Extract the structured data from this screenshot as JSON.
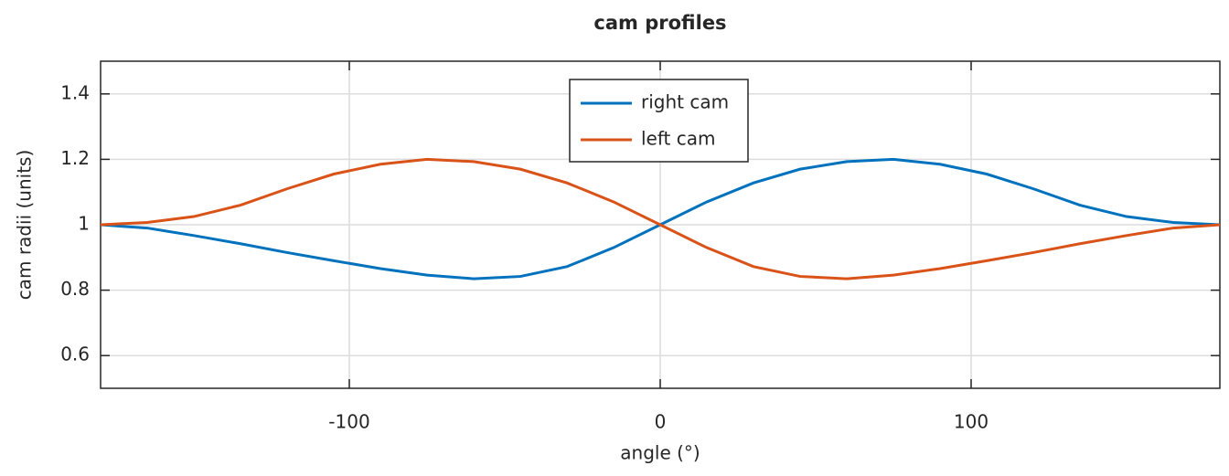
{
  "chart_data": {
    "type": "line",
    "title": "cam profiles",
    "x_label": "angle (°)",
    "y_label": "cam radii (units)",
    "x": [
      -180,
      -165,
      -150,
      -135,
      -120,
      -105,
      -90,
      -75,
      -60,
      -45,
      -30,
      -15,
      0,
      15,
      30,
      45,
      60,
      75,
      90,
      105,
      120,
      135,
      150,
      165,
      180
    ],
    "series": [
      {
        "name": "right cam",
        "color": "#0072bd",
        "values": [
          1.0,
          0.99,
          0.967,
          0.942,
          0.915,
          0.89,
          0.866,
          0.846,
          0.835,
          0.842,
          0.872,
          0.93,
          1.0,
          1.07,
          1.128,
          1.17,
          1.193,
          1.2,
          1.185,
          1.155,
          1.11,
          1.06,
          1.025,
          1.007,
          1.0
        ]
      },
      {
        "name": "left cam",
        "color": "#d95319",
        "values": [
          1.0,
          1.007,
          1.025,
          1.06,
          1.11,
          1.155,
          1.185,
          1.2,
          1.193,
          1.17,
          1.128,
          1.07,
          1.0,
          0.93,
          0.872,
          0.842,
          0.835,
          0.846,
          0.866,
          0.89,
          0.915,
          0.942,
          0.967,
          0.99,
          1.0
        ]
      }
    ],
    "xlim": [
      -180,
      180
    ],
    "xticks": [
      -100,
      0,
      100
    ],
    "ylim": [
      0.5,
      1.5
    ],
    "yticks": [
      0.6,
      0.8,
      1,
      1.2,
      1.4
    ],
    "grid": true,
    "legend": "top"
  }
}
